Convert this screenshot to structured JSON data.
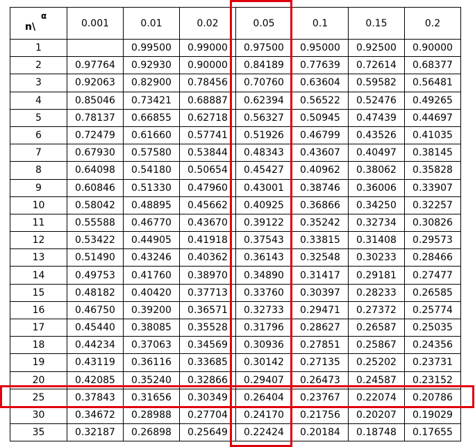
{
  "table": {
    "corner_row_label": "n\\",
    "corner_col_label": "α",
    "columns": [
      "0.001",
      "0.01",
      "0.02",
      "0.05",
      "0.1",
      "0.15",
      "0.2"
    ],
    "rows": [
      {
        "n": "1",
        "values": [
          "",
          "0.99500",
          "0.99000",
          "0.97500",
          "0.95000",
          "0.92500",
          "0.90000"
        ]
      },
      {
        "n": "2",
        "values": [
          "0.97764",
          "0.92930",
          "0.90000",
          "0.84189",
          "0.77639",
          "0.72614",
          "0.68377"
        ]
      },
      {
        "n": "3",
        "values": [
          "0.92063",
          "0.82900",
          "0.78456",
          "0.70760",
          "0.63604",
          "0.59582",
          "0.56481"
        ]
      },
      {
        "n": "4",
        "values": [
          "0.85046",
          "0.73421",
          "0.68887",
          "0.62394",
          "0.56522",
          "0.52476",
          "0.49265"
        ]
      },
      {
        "n": "5",
        "values": [
          "0.78137",
          "0.66855",
          "0.62718",
          "0.56327",
          "0.50945",
          "0.47439",
          "0.44697"
        ]
      },
      {
        "n": "6",
        "values": [
          "0.72479",
          "0.61660",
          "0.57741",
          "0.51926",
          "0.46799",
          "0.43526",
          "0.41035"
        ]
      },
      {
        "n": "7",
        "values": [
          "0.67930",
          "0.57580",
          "0.53844",
          "0.48343",
          "0.43607",
          "0.40497",
          "0.38145"
        ]
      },
      {
        "n": "8",
        "values": [
          "0.64098",
          "0.54180",
          "0.50654",
          "0.45427",
          "0.40962",
          "0.38062",
          "0.35828"
        ]
      },
      {
        "n": "9",
        "values": [
          "0.60846",
          "0.51330",
          "0.47960",
          "0.43001",
          "0.38746",
          "0.36006",
          "0.33907"
        ]
      },
      {
        "n": "10",
        "values": [
          "0.58042",
          "0.48895",
          "0.45662",
          "0.40925",
          "0.36866",
          "0.34250",
          "0.32257"
        ]
      },
      {
        "n": "11",
        "values": [
          "0.55588",
          "0.46770",
          "0.43670",
          "0.39122",
          "0.35242",
          "0.32734",
          "0.30826"
        ]
      },
      {
        "n": "12",
        "values": [
          "0.53422",
          "0.44905",
          "0.41918",
          "0.37543",
          "0.33815",
          "0.31408",
          "0.29573"
        ]
      },
      {
        "n": "13",
        "values": [
          "0.51490",
          "0.43246",
          "0.40362",
          "0.36143",
          "0.32548",
          "0.30233",
          "0.28466"
        ]
      },
      {
        "n": "14",
        "values": [
          "0.49753",
          "0.41760",
          "0.38970",
          "0.34890",
          "0.31417",
          "0.29181",
          "0.27477"
        ]
      },
      {
        "n": "15",
        "values": [
          "0.48182",
          "0.40420",
          "0.37713",
          "0.33760",
          "0.30397",
          "0.28233",
          "0.26585"
        ]
      },
      {
        "n": "16",
        "values": [
          "0.46750",
          "0.39200",
          "0.36571",
          "0.32733",
          "0.29471",
          "0.27372",
          "0.25774"
        ]
      },
      {
        "n": "17",
        "values": [
          "0.45440",
          "0.38085",
          "0.35528",
          "0.31796",
          "0.28627",
          "0.26587",
          "0.25035"
        ]
      },
      {
        "n": "18",
        "values": [
          "0.44234",
          "0.37063",
          "0.34569",
          "0.30936",
          "0.27851",
          "0.25867",
          "0.24356"
        ]
      },
      {
        "n": "19",
        "values": [
          "0.43119",
          "0.36116",
          "0.33685",
          "0.30142",
          "0.27135",
          "0.25202",
          "0.23731"
        ]
      },
      {
        "n": "20",
        "values": [
          "0.42085",
          "0.35240",
          "0.32866",
          "0.29407",
          "0.26473",
          "0.24587",
          "0.23152"
        ]
      },
      {
        "n": "25",
        "values": [
          "0.37843",
          "0.31656",
          "0.30349",
          "0.26404",
          "0.23767",
          "0.22074",
          "0.20786"
        ]
      },
      {
        "n": "30",
        "values": [
          "0.34672",
          "0.28988",
          "0.27704",
          "0.24170",
          "0.21756",
          "0.20207",
          "0.19029"
        ]
      },
      {
        "n": "35",
        "values": [
          "0.32187",
          "0.26898",
          "0.25649",
          "0.22424",
          "0.20184",
          "0.18748",
          "0.17655"
        ]
      }
    ]
  },
  "highlight": {
    "column": "0.05",
    "row": "25",
    "color": "#e0000a"
  }
}
